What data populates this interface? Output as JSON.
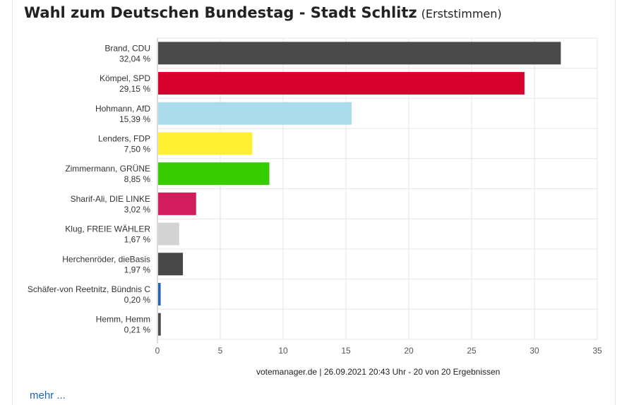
{
  "header": {
    "title": "Wahl zum Deutschen Bundestag - Stadt Schlitz",
    "subtitle": "(Erststimmen)"
  },
  "chart_data": {
    "type": "bar",
    "orientation": "horizontal",
    "categories": [
      "Brand, CDU",
      "Kömpel, SPD",
      "Hohmann, AfD",
      "Lenders, FDP",
      "Zimmermann, GRÜNE",
      "Sharif-Ali, DIE LINKE",
      "Klug, FREIE WÄHLER",
      "Herchenröder, dieBasis",
      "Schäfer-von Reetnitz, Bündnis C",
      "Hemm, Hemm"
    ],
    "value_labels": [
      "32,04 %",
      "29,15 %",
      "15,39 %",
      "7,50 %",
      "8,85 %",
      "3,02 %",
      "1,67 %",
      "1,97 %",
      "0,20 %",
      "0,21 %"
    ],
    "values": [
      32.04,
      29.15,
      15.39,
      7.5,
      8.85,
      3.02,
      1.67,
      1.97,
      0.2,
      0.21
    ],
    "colors": [
      "#4a4a4a",
      "#d8002e",
      "#aadcec",
      "#fff032",
      "#37cc00",
      "#d21d5c",
      "#d3d3d3",
      "#474747",
      "#1f63b0",
      "#4a4a4a"
    ],
    "xlim": [
      0,
      35
    ],
    "xticks": [
      "0",
      "5",
      "10",
      "15",
      "20",
      "25",
      "30",
      "35"
    ],
    "grid": true,
    "legend": "none"
  },
  "footer": {
    "source": "votemanager.de | 26.09.2021 20:43 Uhr - 20 von 20 Ergebnissen",
    "more_link": "mehr ..."
  }
}
